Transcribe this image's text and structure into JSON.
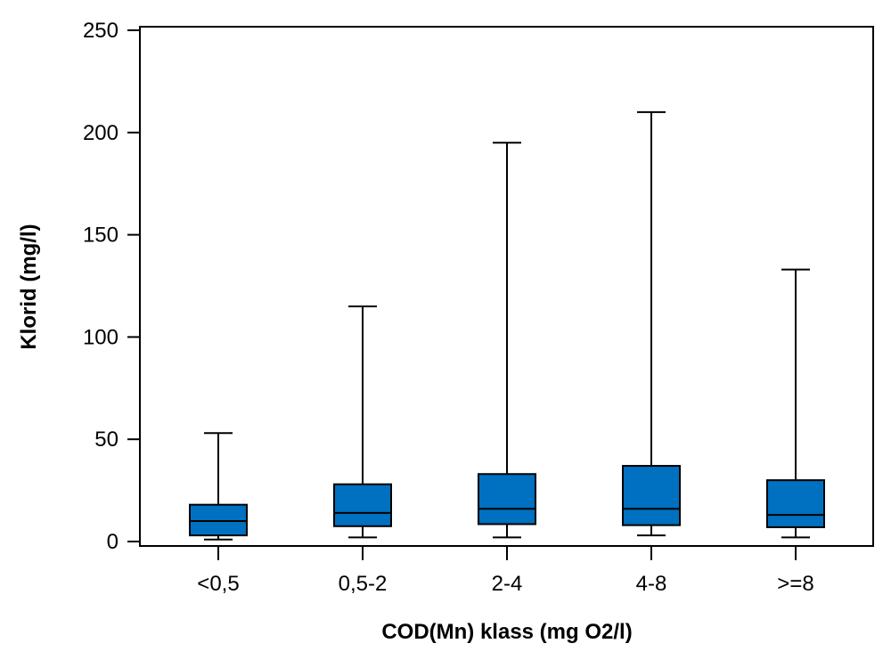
{
  "chart_data": {
    "type": "boxplot",
    "title": "",
    "xlabel": "COD(Mn) klass (mg O2/l)",
    "ylabel": "Klorid (mg/l)",
    "ylim": [
      0,
      250
    ],
    "yticks": [
      0,
      50,
      100,
      150,
      200,
      250
    ],
    "grid": false,
    "legend": "none",
    "box_color": "#0070c0",
    "categories": [
      "<0,5",
      "0,5-2",
      "2-4",
      "4-8",
      ">=8"
    ],
    "boxes": [
      {
        "min": 1,
        "q1": 3,
        "median": 10,
        "q3": 18,
        "max": 53
      },
      {
        "min": 2,
        "q1": 7.5,
        "median": 14,
        "q3": 28,
        "max": 115
      },
      {
        "min": 2,
        "q1": 8.5,
        "median": 16,
        "q3": 33,
        "max": 195
      },
      {
        "min": 3,
        "q1": 8,
        "median": 16,
        "q3": 37,
        "max": 210
      },
      {
        "min": 2,
        "q1": 7,
        "median": 13,
        "q3": 30,
        "max": 133
      }
    ]
  }
}
